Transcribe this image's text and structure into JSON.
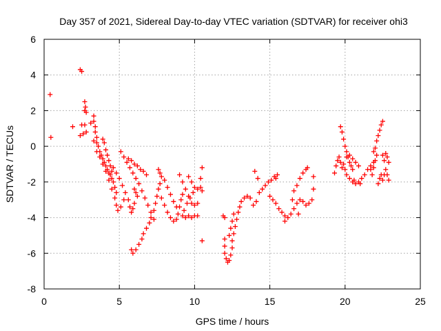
{
  "chart_data": {
    "type": "scatter",
    "title": "Day 357 of 2021, Sidereal Day-to-day VTEC variation (SDTVAR) for receiver ohi3",
    "xlabel": "GPS time / hours",
    "ylabel": "SDTVAR / TECUs",
    "xlim": [
      0,
      25
    ],
    "ylim": [
      -8,
      6
    ],
    "xticks": [
      "0",
      "5",
      "10",
      "15",
      "20",
      "25"
    ],
    "yticks": [
      "-8",
      "-6",
      "-4",
      "-2",
      "0",
      "2",
      "4",
      "6"
    ],
    "grid": true,
    "marker": "plus",
    "series": [
      {
        "name": "SDTVAR",
        "color": "#ff0000",
        "points": [
          [
            0.4,
            2.9
          ],
          [
            0.45,
            0.5
          ],
          [
            1.9,
            1.1
          ],
          [
            2.4,
            4.3
          ],
          [
            2.5,
            4.2
          ],
          [
            2.4,
            0.6
          ],
          [
            2.5,
            1.2
          ],
          [
            2.6,
            0.7
          ],
          [
            2.7,
            1.2
          ],
          [
            2.8,
            0.8
          ],
          [
            2.7,
            2.5
          ],
          [
            2.75,
            2.2
          ],
          [
            2.7,
            2.0
          ],
          [
            2.8,
            1.9
          ],
          [
            3.1,
            1.3
          ],
          [
            3.3,
            1.7
          ],
          [
            3.3,
            1.4
          ],
          [
            3.4,
            1.1
          ],
          [
            3.4,
            0.8
          ],
          [
            3.5,
            0.5
          ],
          [
            3.5,
            0.2
          ],
          [
            3.6,
            0.0
          ],
          [
            3.7,
            -0.3
          ],
          [
            3.8,
            -0.5
          ],
          [
            3.9,
            -0.7
          ],
          [
            4.0,
            -0.9
          ],
          [
            4.1,
            -1.1
          ],
          [
            4.2,
            -1.3
          ],
          [
            4.3,
            -1.5
          ],
          [
            4.4,
            -1.6
          ],
          [
            4.5,
            -1.8
          ],
          [
            4.6,
            -2.0
          ],
          [
            4.7,
            -2.3
          ],
          [
            4.8,
            -2.6
          ],
          [
            3.9,
            0.4
          ],
          [
            4.0,
            0.2
          ],
          [
            4.1,
            -0.2
          ],
          [
            4.2,
            -0.5
          ],
          [
            4.3,
            -0.8
          ],
          [
            4.4,
            -1.1
          ],
          [
            4.5,
            -1.4
          ],
          [
            3.3,
            0.3
          ],
          [
            3.5,
            -0.3
          ],
          [
            3.7,
            -0.6
          ],
          [
            3.9,
            -1.0
          ],
          [
            4.1,
            -1.4
          ],
          [
            4.3,
            -1.9
          ],
          [
            4.5,
            -2.4
          ],
          [
            4.7,
            -2.9
          ],
          [
            4.8,
            -3.3
          ],
          [
            4.9,
            -3.6
          ],
          [
            5.1,
            -3.4
          ],
          [
            5.3,
            -3.0
          ],
          [
            4.6,
            -1.2
          ],
          [
            4.8,
            -1.5
          ],
          [
            5.0,
            -1.8
          ],
          [
            5.2,
            -2.2
          ],
          [
            5.4,
            -2.6
          ],
          [
            5.6,
            -3.0
          ],
          [
            5.7,
            -3.4
          ],
          [
            5.8,
            -3.7
          ],
          [
            5.9,
            -3.5
          ],
          [
            6.0,
            -3.2
          ],
          [
            5.1,
            -0.3
          ],
          [
            5.3,
            -0.6
          ],
          [
            5.5,
            -0.9
          ],
          [
            5.7,
            -1.2
          ],
          [
            5.9,
            -1.5
          ],
          [
            6.1,
            -1.8
          ],
          [
            6.3,
            -2.1
          ],
          [
            6.5,
            -2.5
          ],
          [
            6.7,
            -2.9
          ],
          [
            6.9,
            -3.3
          ],
          [
            7.1,
            -3.7
          ],
          [
            7.3,
            -4.1
          ],
          [
            5.6,
            -0.7
          ],
          [
            5.8,
            -0.8
          ],
          [
            6.0,
            -1.0
          ],
          [
            6.2,
            -1.1
          ],
          [
            6.4,
            -1.3
          ],
          [
            6.6,
            -1.4
          ],
          [
            6.8,
            -1.6
          ],
          [
            6.0,
            -2.4
          ],
          [
            6.1,
            -2.6
          ],
          [
            6.2,
            -2.8
          ],
          [
            5.8,
            -5.8
          ],
          [
            5.9,
            -6.0
          ],
          [
            6.1,
            -5.8
          ],
          [
            6.3,
            -5.5
          ],
          [
            6.5,
            -5.2
          ],
          [
            6.6,
            -4.9
          ],
          [
            6.8,
            -4.6
          ],
          [
            7.0,
            -4.3
          ],
          [
            7.1,
            -4.0
          ],
          [
            7.3,
            -3.6
          ],
          [
            7.4,
            -3.2
          ],
          [
            7.5,
            -2.8
          ],
          [
            7.6,
            -2.4
          ],
          [
            7.7,
            -2.1
          ],
          [
            7.8,
            -1.7
          ],
          [
            7.6,
            -1.3
          ],
          [
            7.7,
            -1.5
          ],
          [
            7.8,
            -2.9
          ],
          [
            8.0,
            -3.3
          ],
          [
            8.2,
            -3.7
          ],
          [
            8.4,
            -4.0
          ],
          [
            8.6,
            -4.2
          ],
          [
            8.8,
            -4.1
          ],
          [
            8.9,
            -3.8
          ],
          [
            9.0,
            -3.4
          ],
          [
            9.1,
            -3.0
          ],
          [
            9.2,
            -2.7
          ],
          [
            8.0,
            -1.9
          ],
          [
            8.2,
            -2.3
          ],
          [
            8.4,
            -2.7
          ],
          [
            8.6,
            -3.1
          ],
          [
            8.8,
            -3.4
          ],
          [
            9.0,
            -1.6
          ],
          [
            9.2,
            -2.0
          ],
          [
            9.4,
            -2.4
          ],
          [
            9.6,
            -2.8
          ],
          [
            9.8,
            -3.2
          ],
          [
            10.0,
            -3.3
          ],
          [
            10.2,
            -3.2
          ],
          [
            9.2,
            -3.9
          ],
          [
            9.3,
            -3.6
          ],
          [
            9.5,
            -3.2
          ],
          [
            9.7,
            -2.9
          ],
          [
            9.9,
            -2.6
          ],
          [
            9.4,
            -4.0
          ],
          [
            9.6,
            -3.9
          ],
          [
            9.8,
            -4.0
          ],
          [
            10.0,
            -3.9
          ],
          [
            10.2,
            -3.9
          ],
          [
            9.6,
            -1.7
          ],
          [
            9.8,
            -2.0
          ],
          [
            10.0,
            -2.3
          ],
          [
            10.2,
            -2.4
          ],
          [
            10.4,
            -2.3
          ],
          [
            10.5,
            -2.5
          ],
          [
            10.5,
            -1.2
          ],
          [
            10.4,
            -1.8
          ],
          [
            10.5,
            -5.3
          ],
          [
            11.9,
            -3.9
          ],
          [
            12.0,
            -4.0
          ],
          [
            12.0,
            -5.2
          ],
          [
            12.0,
            -5.6
          ],
          [
            12.0,
            -6.0
          ],
          [
            12.1,
            -6.3
          ],
          [
            12.2,
            -6.5
          ],
          [
            12.3,
            -6.4
          ],
          [
            12.4,
            -6.1
          ],
          [
            12.5,
            -5.7
          ],
          [
            12.5,
            -5.3
          ],
          [
            12.6,
            -4.9
          ],
          [
            12.7,
            -4.5
          ],
          [
            12.8,
            -4.1
          ],
          [
            12.9,
            -3.7
          ],
          [
            13.0,
            -3.4
          ],
          [
            13.1,
            -3.1
          ],
          [
            13.3,
            -2.9
          ],
          [
            13.5,
            -2.8
          ],
          [
            13.7,
            -2.9
          ],
          [
            12.3,
            -5.0
          ],
          [
            12.4,
            -4.6
          ],
          [
            12.5,
            -4.2
          ],
          [
            12.6,
            -3.8
          ],
          [
            13.9,
            -3.3
          ],
          [
            14.1,
            -3.1
          ],
          [
            14.3,
            -2.6
          ],
          [
            14.5,
            -2.4
          ],
          [
            14.7,
            -2.2
          ],
          [
            14.9,
            -2.0
          ],
          [
            15.1,
            -1.9
          ],
          [
            15.3,
            -1.7
          ],
          [
            15.4,
            -1.8
          ],
          [
            15.5,
            -1.6
          ],
          [
            14.0,
            -1.4
          ],
          [
            14.2,
            -1.8
          ],
          [
            15.0,
            -2.8
          ],
          [
            15.2,
            -3.0
          ],
          [
            15.4,
            -3.2
          ],
          [
            15.6,
            -3.5
          ],
          [
            15.8,
            -3.7
          ],
          [
            16.0,
            -3.9
          ],
          [
            16.0,
            -4.2
          ],
          [
            16.2,
            -4.0
          ],
          [
            16.4,
            -3.8
          ],
          [
            16.6,
            -3.5
          ],
          [
            16.8,
            -3.2
          ],
          [
            17.0,
            -3.0
          ],
          [
            17.2,
            -3.1
          ],
          [
            17.4,
            -3.3
          ],
          [
            17.6,
            -3.2
          ],
          [
            17.8,
            -3.0
          ],
          [
            16.5,
            -3.0
          ],
          [
            16.6,
            -2.5
          ],
          [
            16.8,
            -2.2
          ],
          [
            17.0,
            -1.8
          ],
          [
            17.2,
            -1.5
          ],
          [
            17.4,
            -1.3
          ],
          [
            16.9,
            -3.8
          ],
          [
            17.9,
            -1.7
          ],
          [
            17.9,
            -2.4
          ],
          [
            17.5,
            -1.2
          ],
          [
            19.3,
            -1.5
          ],
          [
            19.4,
            -1.1
          ],
          [
            19.5,
            -0.8
          ],
          [
            19.6,
            -0.6
          ],
          [
            19.7,
            -0.9
          ],
          [
            19.8,
            -1.2
          ],
          [
            19.9,
            -1.0
          ],
          [
            20.0,
            -1.3
          ],
          [
            20.1,
            -1.6
          ],
          [
            20.3,
            -1.8
          ],
          [
            20.5,
            -2.0
          ],
          [
            20.7,
            -2.1
          ],
          [
            20.9,
            -2.0
          ],
          [
            21.1,
            -1.8
          ],
          [
            21.3,
            -1.6
          ],
          [
            21.5,
            -1.3
          ],
          [
            21.7,
            -1.1
          ],
          [
            21.9,
            -0.9
          ],
          [
            19.7,
            1.1
          ],
          [
            19.8,
            0.8
          ],
          [
            19.9,
            0.4
          ],
          [
            20.0,
            0.0
          ],
          [
            20.1,
            -0.3
          ],
          [
            20.2,
            -0.6
          ],
          [
            20.3,
            -0.9
          ],
          [
            20.4,
            -1.1
          ],
          [
            20.5,
            -1.3
          ],
          [
            20.1,
            -0.6
          ],
          [
            20.3,
            -0.5
          ],
          [
            20.5,
            -0.7
          ],
          [
            20.7,
            -0.9
          ],
          [
            20.9,
            -1.1
          ],
          [
            21.9,
            -0.3
          ],
          [
            22.0,
            -0.1
          ],
          [
            22.1,
            0.3
          ],
          [
            22.2,
            0.6
          ],
          [
            22.3,
            0.9
          ],
          [
            22.4,
            1.2
          ],
          [
            22.5,
            1.4
          ],
          [
            21.7,
            -1.3
          ],
          [
            21.8,
            -1.6
          ],
          [
            21.9,
            -1.2
          ],
          [
            22.0,
            -0.8
          ],
          [
            22.1,
            -0.5
          ],
          [
            22.2,
            -2.1
          ],
          [
            22.3,
            -1.8
          ],
          [
            22.4,
            -1.6
          ],
          [
            22.5,
            -1.9
          ],
          [
            22.6,
            -1.6
          ],
          [
            22.7,
            -1.3
          ],
          [
            22.8,
            -1.6
          ],
          [
            22.9,
            -1.9
          ],
          [
            22.5,
            -0.5
          ],
          [
            22.6,
            -0.8
          ],
          [
            22.7,
            -0.4
          ],
          [
            22.8,
            -0.6
          ],
          [
            22.9,
            -0.9
          ],
          [
            20.6,
            -1.9
          ],
          [
            21.0,
            -2.1
          ]
        ]
      }
    ]
  }
}
